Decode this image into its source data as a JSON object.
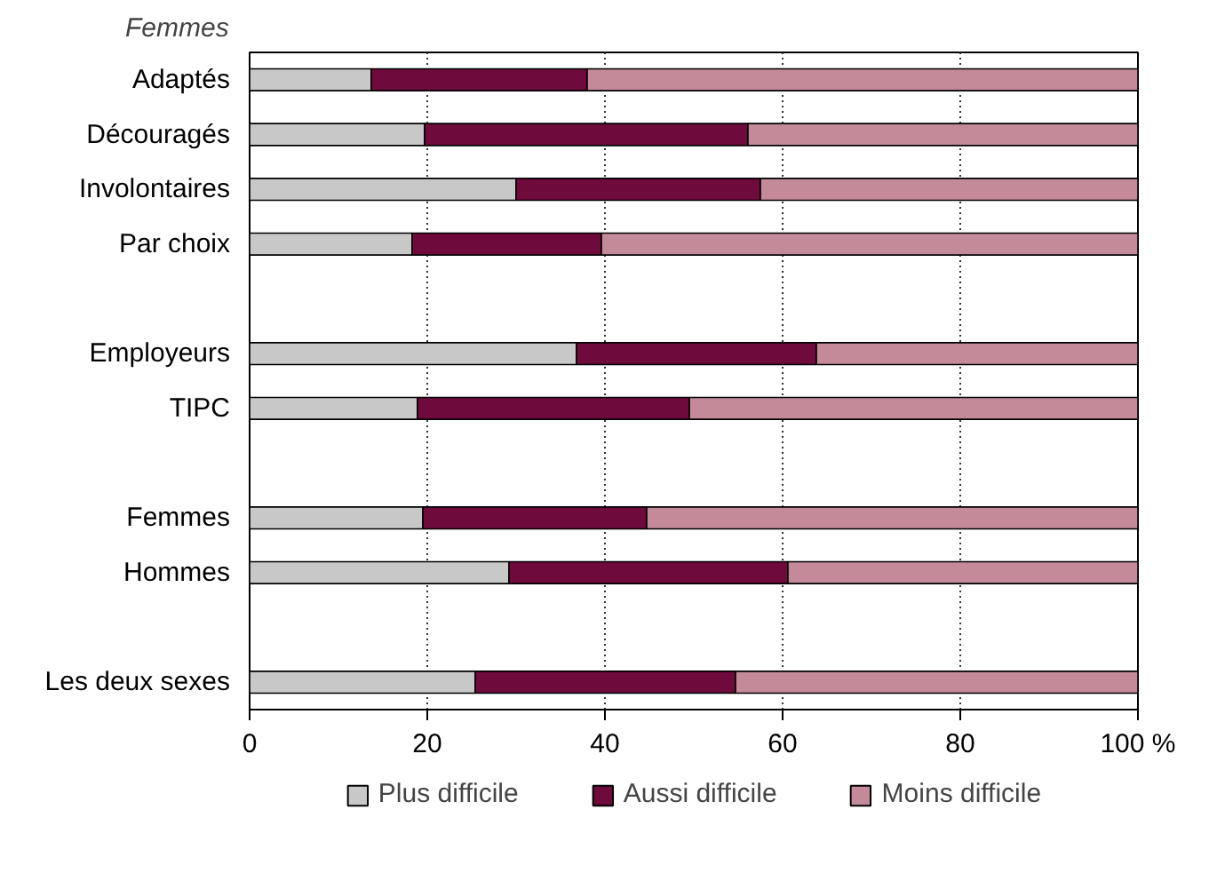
{
  "chart_data": {
    "type": "bar",
    "orientation": "horizontal",
    "stacked": true,
    "categories": [
      "Adaptés",
      "Découragés",
      "Involontaires",
      "Par choix",
      null,
      "Employeurs",
      "TIPC",
      null,
      "Femmes",
      "Hommes",
      null,
      "Les deux sexes"
    ],
    "series": [
      {
        "name": "Plus difficile",
        "color": "#c8c8c8",
        "values": [
          13.7,
          19.7,
          30.0,
          18.3,
          null,
          36.8,
          18.9,
          null,
          19.5,
          29.2,
          null,
          25.4
        ]
      },
      {
        "name": "Aussi difficile",
        "color": "#6e0a3c",
        "values": [
          24.3,
          36.4,
          27.5,
          21.3,
          null,
          27.0,
          30.6,
          null,
          25.2,
          31.4,
          null,
          29.3
        ]
      },
      {
        "name": "Moins difficile",
        "color": "#c48a9a",
        "values": [
          62.0,
          43.9,
          42.5,
          60.4,
          null,
          36.2,
          50.5,
          null,
          55.3,
          39.4,
          null,
          45.3
        ]
      }
    ],
    "xlim": [
      0,
      100
    ],
    "xticks": [
      0,
      20,
      40,
      60,
      80,
      {
        "value": 100,
        "label": "100 %"
      }
    ],
    "grid": "x",
    "legend": "bottom",
    "annotations": [
      "Femmes"
    ]
  }
}
